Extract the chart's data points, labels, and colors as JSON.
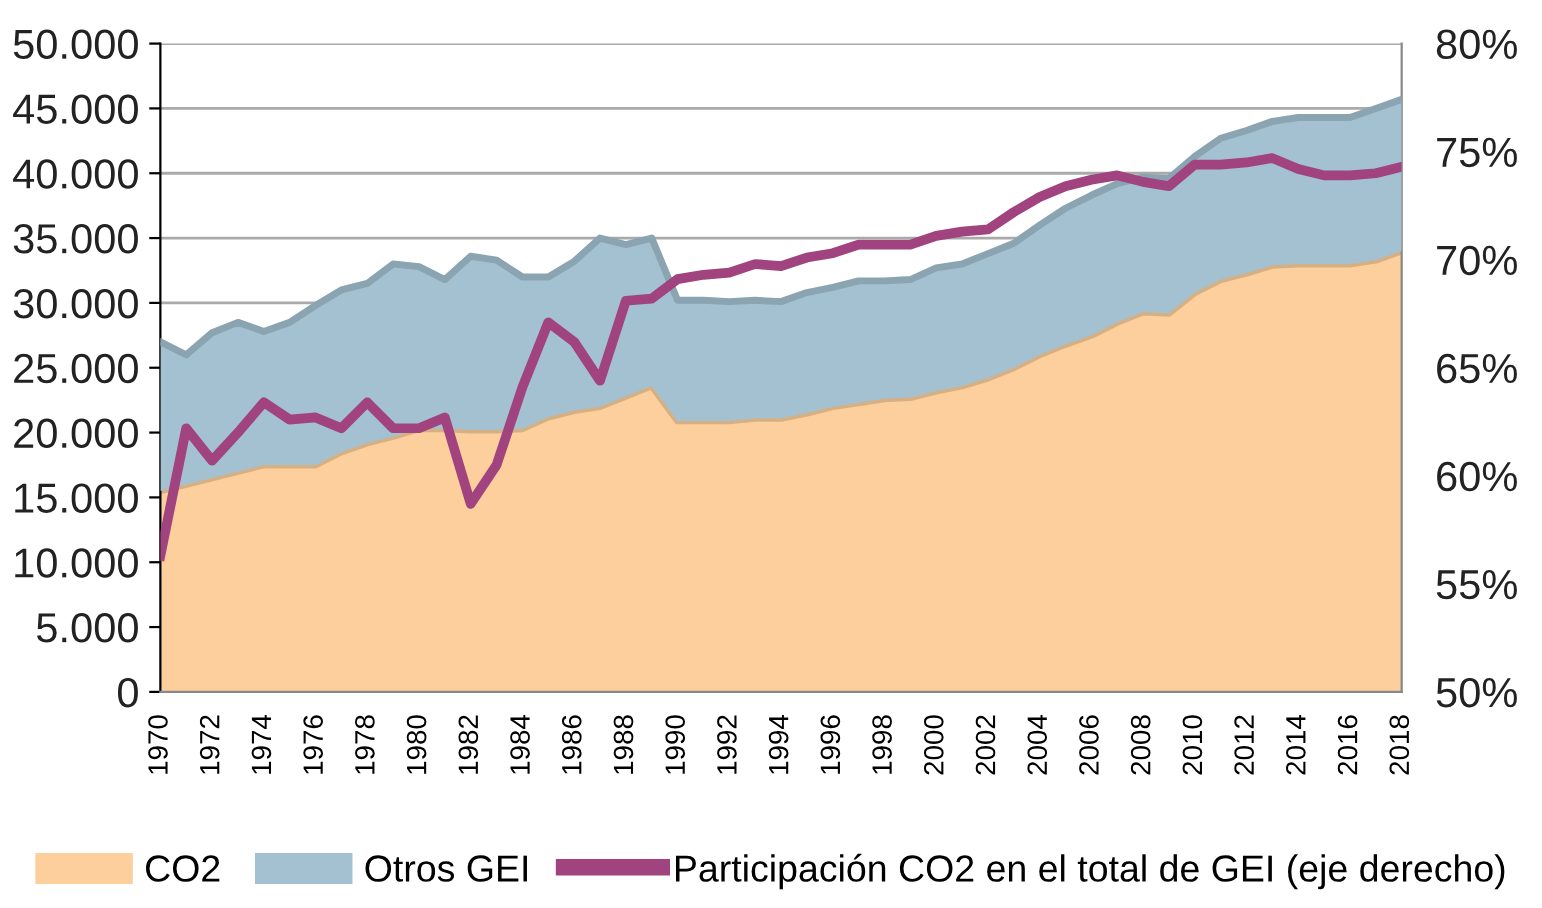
{
  "chart_data": {
    "type": "area",
    "stacked": true,
    "x": [
      1970,
      1971,
      1972,
      1973,
      1974,
      1975,
      1976,
      1977,
      1978,
      1979,
      1980,
      1981,
      1982,
      1983,
      1984,
      1985,
      1986,
      1987,
      1988,
      1989,
      1990,
      1991,
      1992,
      1993,
      1994,
      1995,
      1996,
      1997,
      1998,
      1999,
      2000,
      2001,
      2002,
      2003,
      2004,
      2005,
      2006,
      2007,
      2008,
      2009,
      2010,
      2011,
      2012,
      2013,
      2014,
      2015,
      2016,
      2017,
      2018
    ],
    "series": [
      {
        "name": "CO2",
        "color": "#fccf9c",
        "values": [
          15500,
          16000,
          16500,
          17000,
          17500,
          17500,
          17500,
          18500,
          19200,
          19700,
          20300,
          20300,
          20200,
          20200,
          20300,
          21200,
          21700,
          22000,
          22800,
          23600,
          20900,
          20900,
          20900,
          21100,
          21100,
          21500,
          22000,
          22300,
          22600,
          22700,
          23200,
          23600,
          24200,
          25000,
          26000,
          26800,
          27500,
          28500,
          29300,
          29200,
          30800,
          31800,
          32300,
          32900,
          33000,
          33000,
          33000,
          33300,
          34000
        ]
      },
      {
        "name": "Otros GEI",
        "color": "#a3c1d0",
        "values": [
          11500,
          10000,
          11200,
          11500,
          10300,
          11000,
          12300,
          12500,
          12300,
          13300,
          12500,
          11500,
          13400,
          13100,
          11700,
          10800,
          11500,
          13000,
          11700,
          11400,
          9300,
          9300,
          9200,
          9100,
          9000,
          9300,
          9200,
          9400,
          9100,
          9100,
          9500,
          9400,
          9600,
          9600,
          10000,
          10500,
          10800,
          10700,
          10400,
          10400,
          10500,
          10900,
          11000,
          11100,
          11300,
          11300,
          11300,
          11700,
          11700
        ]
      },
      {
        "name": "Participación CO2 en el total de GEI (eje derecho)",
        "type": "line",
        "axis": "y2",
        "color": "#a0437f",
        "values": [
          56.3,
          62.2,
          60.7,
          62.0,
          63.4,
          62.6,
          62.7,
          62.2,
          63.4,
          62.2,
          62.2,
          62.7,
          58.7,
          60.5,
          64.1,
          67.1,
          66.2,
          64.4,
          68.1,
          68.2,
          69.1,
          69.3,
          69.4,
          69.8,
          69.7,
          70.1,
          70.3,
          70.7,
          70.7,
          70.7,
          71.1,
          71.3,
          71.4,
          72.2,
          72.9,
          73.4,
          73.7,
          73.9,
          73.6,
          73.4,
          74.4,
          74.4,
          74.5,
          74.7,
          74.2,
          73.9,
          73.9,
          74.0,
          74.3
        ]
      }
    ],
    "xlim": [
      1970,
      2018
    ],
    "xticks": [
      1970,
      1972,
      1974,
      1976,
      1978,
      1980,
      1982,
      1984,
      1986,
      1988,
      1990,
      1992,
      1994,
      1996,
      1998,
      2000,
      2002,
      2004,
      2006,
      2008,
      2010,
      2012,
      2014,
      2016,
      2018
    ],
    "ylim": [
      0,
      50000
    ],
    "yticks": [
      {
        "value": 0,
        "label": "0"
      },
      {
        "value": 5000,
        "label": "5.000"
      },
      {
        "value": 10000,
        "label": "10.000"
      },
      {
        "value": 15000,
        "label": "15.000"
      },
      {
        "value": 20000,
        "label": "20.000"
      },
      {
        "value": 25000,
        "label": "25.000"
      },
      {
        "value": 30000,
        "label": "30.000"
      },
      {
        "value": 35000,
        "label": "35.000"
      },
      {
        "value": 40000,
        "label": "40.000"
      },
      {
        "value": 45000,
        "label": "45.000"
      },
      {
        "value": 50000,
        "label": "50.000"
      }
    ],
    "y2lim": [
      50,
      80
    ],
    "y2ticks": [
      {
        "value": 50,
        "label": "50%"
      },
      {
        "value": 55,
        "label": "55%"
      },
      {
        "value": 60,
        "label": "60%"
      },
      {
        "value": 65,
        "label": "65%"
      },
      {
        "value": 70,
        "label": "70%"
      },
      {
        "value": 75,
        "label": "75%"
      },
      {
        "value": 80,
        "label": "80%"
      }
    ],
    "grid": "y",
    "legend": "bottom"
  }
}
